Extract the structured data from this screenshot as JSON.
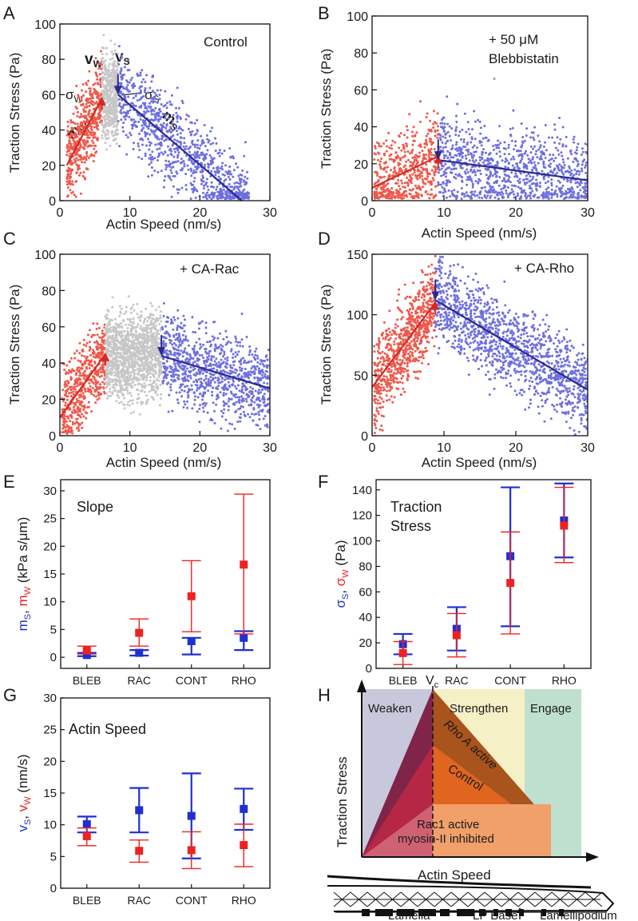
{
  "colors": {
    "weak": "#f0584a",
    "strong": "#6d6fe0",
    "transition": "#c7c7c7",
    "weak_line": "#d42a25",
    "strong_line": "#2a2a8e",
    "summary_strong": "#1f2fd0",
    "summary_weak": "#ee2222",
    "weaken_bg": "#c8c8dc",
    "strengthen_bg": "#f6f0c6",
    "engage_bg": "#bfe0cf"
  },
  "panels": {
    "A": {
      "letter": "A",
      "label": "Control",
      "v_w": "v",
      "v_w_sub": "W",
      "v_s": "v",
      "v_s_sub": "S",
      "sigma_w": "σ",
      "sigma_w_sub": "W",
      "sigma_s": "σ",
      "sigma_s_sub": "S",
      "m_w": "m",
      "m_w_sub": "W",
      "m_s": "m",
      "m_s_sub": "S"
    },
    "B": {
      "letter": "B",
      "label_line1": "+ 50 μM",
      "label_line2": "Blebbistatin"
    },
    "C": {
      "letter": "C",
      "label": "+ CA-Rac"
    },
    "D": {
      "letter": "D",
      "label": "+ CA-Rho"
    },
    "E": {
      "letter": "E",
      "label": "Slope"
    },
    "F": {
      "letter": "F",
      "label_line1": "Traction",
      "label_line2": "Stress"
    },
    "G": {
      "letter": "G",
      "label": "Actin Speed"
    },
    "H": {
      "letter": "H",
      "weaken": "Weaken",
      "vc": "V",
      "vc_sub": "c",
      "strengthen": "Strengthen",
      "engage": "Engage",
      "rho": "Rho A active",
      "control": "Control",
      "rac1": "Rac1 active",
      "myosin": "myosin-II inhibited",
      "ylabel": "Traction Stress",
      "xlabel": "Actin Speed",
      "lamella": "Lamella",
      "lp_base": "LP Base",
      "lamellipodium": "Lamellipodium"
    }
  },
  "chart_data": [
    {
      "id": "A",
      "type": "scatter",
      "title": "Control",
      "xlabel": "Actin Speed (nm/s)",
      "ylabel": "Traction Stress (Pa)",
      "xlim": [
        0,
        30
      ],
      "ylim": [
        0,
        100
      ],
      "xticks": [
        0,
        10,
        20,
        30
      ],
      "yticks": [
        0,
        20,
        40,
        60,
        80,
        100
      ],
      "vw": 6,
      "vs": 8.3,
      "sigma_w": 58,
      "sigma_s": 60,
      "vmax": 27,
      "weak_line": [
        [
          1,
          20
        ],
        [
          6,
          58
        ]
      ],
      "strong_line": [
        [
          8.3,
          60
        ],
        [
          26,
          0
        ]
      ]
    },
    {
      "id": "B",
      "type": "scatter",
      "title": "+ 50 μM Blebbistatin",
      "xlabel": "Actin Speed (nm/s)",
      "ylabel": "Traction Stress (Pa)",
      "xlim": [
        0,
        30
      ],
      "ylim": [
        0,
        100
      ],
      "xticks": [
        0,
        10,
        20,
        30
      ],
      "yticks": [
        0,
        20,
        40,
        60,
        80,
        100
      ],
      "vw": 9.2,
      "vs": 9.2,
      "sigma_w": 24,
      "sigma_s": 22,
      "vmax": 30,
      "weak_line": [
        [
          0,
          7
        ],
        [
          9.2,
          24
        ]
      ],
      "strong_line": [
        [
          9.2,
          22
        ],
        [
          30,
          11
        ]
      ]
    },
    {
      "id": "C",
      "type": "scatter",
      "title": "+ CA-Rac",
      "xlabel": "Actin Speed (nm/s)",
      "ylabel": "Traction Stress (Pa)",
      "xlim": [
        0,
        30
      ],
      "ylim": [
        0,
        100
      ],
      "xticks": [
        0,
        10,
        20,
        30
      ],
      "yticks": [
        0,
        20,
        40,
        60,
        80,
        100
      ],
      "vw": 6.5,
      "vs": 14.5,
      "sigma_w": 45,
      "sigma_s": 44,
      "vmax": 30,
      "weak_line": [
        [
          0,
          10
        ],
        [
          6.5,
          45
        ]
      ],
      "strong_line": [
        [
          14.5,
          44
        ],
        [
          30,
          26
        ]
      ]
    },
    {
      "id": "D",
      "type": "scatter",
      "title": "+ CA-Rho",
      "xlabel": "Actin Speed (nm/s)",
      "ylabel": "Traction Stress (Pa)",
      "xlim": [
        0,
        30
      ],
      "ylim": [
        0,
        150
      ],
      "xticks": [
        0,
        10,
        20,
        30
      ],
      "yticks": [
        0,
        50,
        100,
        150
      ],
      "vw": 8.8,
      "vs": 8.8,
      "sigma_w": 110,
      "sigma_s": 112,
      "vmax": 30,
      "weak_line": [
        [
          0,
          40
        ],
        [
          8.8,
          110
        ]
      ],
      "strong_line": [
        [
          8.8,
          112
        ],
        [
          30,
          38
        ]
      ]
    },
    {
      "id": "E",
      "type": "scatter",
      "ylabel": "mS, mW (kPa s/μm)",
      "categories": [
        "BLEB",
        "RAC",
        "CONT",
        "RHO"
      ],
      "ylim": [
        -2,
        32
      ],
      "yticks": [
        0,
        5,
        10,
        15,
        20,
        25,
        30
      ],
      "series": [
        {
          "values": [
            0.4,
            0.8,
            2.9,
            3.5
          ],
          "err_lo": [
            0.2,
            0.3,
            0.5,
            1.3
          ],
          "err_hi": [
            0.8,
            1.3,
            3.5,
            4.7
          ]
        },
        {
          "values": [
            1.3,
            4.4,
            11.0,
            16.7
          ],
          "err_lo": [
            0.6,
            2.0,
            4.6,
            4.2
          ],
          "err_hi": [
            2.0,
            6.9,
            17.4,
            29.4
          ]
        }
      ]
    },
    {
      "id": "F",
      "type": "scatter",
      "ylabel": "σS, σW (Pa)",
      "categories": [
        "BLEB",
        "RAC",
        "CONT",
        "RHO"
      ],
      "ylim": [
        0,
        148
      ],
      "yticks": [
        0,
        20,
        40,
        60,
        80,
        100,
        120,
        140
      ],
      "series": [
        {
          "values": [
            19,
            31,
            88,
            116
          ],
          "err_lo": [
            11,
            14,
            33,
            87
          ],
          "err_hi": [
            27,
            48,
            142,
            145
          ]
        },
        {
          "values": [
            12,
            26,
            67,
            112
          ],
          "err_lo": [
            3,
            9,
            27,
            83
          ],
          "err_hi": [
            21,
            43,
            107,
            142
          ]
        }
      ]
    },
    {
      "id": "G",
      "type": "scatter",
      "ylabel": "vS, vW (nm/s)",
      "categories": [
        "BLEB",
        "RAC",
        "CONT",
        "RHO"
      ],
      "ylim": [
        0,
        30
      ],
      "yticks": [
        0,
        5,
        10,
        15,
        20,
        25,
        30
      ],
      "series": [
        {
          "values": [
            10.1,
            12.3,
            11.4,
            12.5
          ],
          "err_lo": [
            8.8,
            8.8,
            4.7,
            9.2
          ],
          "err_hi": [
            11.3,
            15.8,
            18.1,
            15.7
          ]
        },
        {
          "values": [
            8.2,
            5.9,
            6.0,
            6.8
          ],
          "err_lo": [
            6.7,
            4.1,
            3.1,
            3.4
          ],
          "err_hi": [
            9.5,
            7.6,
            8.9,
            10.1
          ]
        }
      ]
    },
    {
      "id": "H",
      "type": "area",
      "xlabel": "Actin Speed",
      "ylabel": "Traction Stress",
      "regions": [
        "Weaken",
        "Strengthen",
        "Engage"
      ],
      "series": [
        {
          "name": "Rho A active",
          "peak": 0.88,
          "end": 0.26
        },
        {
          "name": "Control",
          "peak": 0.6,
          "end": 0.14
        },
        {
          "name": "Rac1 active myosin-II inhibited",
          "peak": 0.3,
          "end": 0.0
        }
      ]
    }
  ]
}
